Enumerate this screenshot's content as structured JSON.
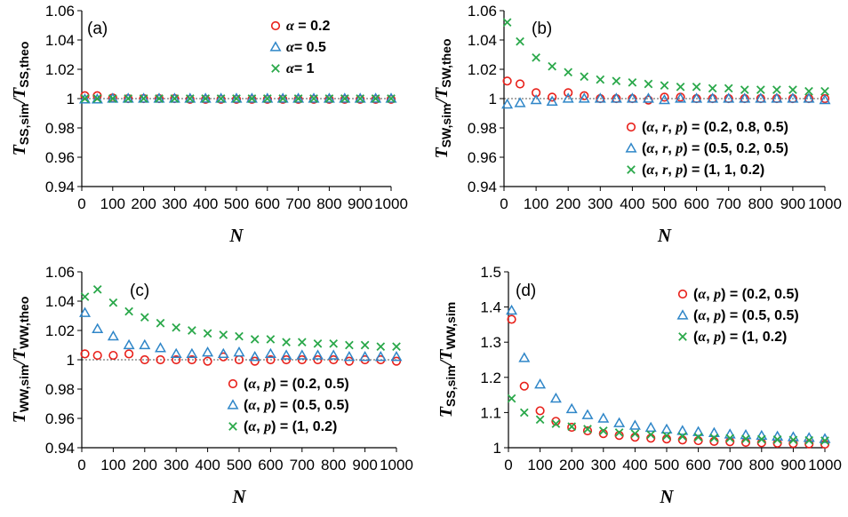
{
  "colors": {
    "red": "#e8201a",
    "blue": "#2f86c8",
    "green": "#2aa84a",
    "axis": "#000000",
    "refline": "#555555"
  },
  "chart_data": [
    {
      "type": "scatter",
      "panel_label": "(a)",
      "xlabel": "N",
      "ylabel": {
        "main": "T",
        "num_sub": "SS,sim",
        "den_sub": "SS,theo"
      },
      "xlim": [
        0,
        1000
      ],
      "ylim": [
        0.94,
        1.06
      ],
      "yticks": [
        "0.94",
        "0.96",
        "0.98",
        "1",
        "1.02",
        "1.04",
        "1.06"
      ],
      "xticks": [
        "0",
        "100",
        "200",
        "300",
        "400",
        "500",
        "600",
        "700",
        "800",
        "900",
        "1000"
      ],
      "legend_position": "top-right",
      "x": [
        10,
        50,
        100,
        150,
        200,
        250,
        300,
        350,
        400,
        450,
        500,
        550,
        600,
        650,
        700,
        750,
        800,
        850,
        900,
        950,
        1000
      ],
      "series": [
        {
          "legend": [
            "α",
            " = 0.2"
          ],
          "marker": "circle",
          "color": "red",
          "values": [
            1.002,
            1.002,
            1.0005,
            1.0,
            1.0,
            1.0,
            1.0,
            0.9995,
            0.9995,
            0.9995,
            0.9995,
            0.9995,
            0.9995,
            0.9995,
            0.9995,
            0.9995,
            0.9995,
            0.9995,
            0.9995,
            0.9995,
            0.9995
          ]
        },
        {
          "legend": [
            "α",
            "= 0.5"
          ],
          "marker": "triangle",
          "color": "blue",
          "values": [
            0.9995,
            0.9995,
            1.0,
            1.0,
            1.0,
            1.0,
            1.0,
            1.0,
            1.0,
            1.0,
            1.0,
            1.0,
            1.0,
            1.0,
            1.0,
            1.0,
            1.0,
            1.0,
            1.0,
            1.0,
            1.0
          ]
        },
        {
          "legend": [
            "α",
            "= 1"
          ],
          "marker": "cross",
          "color": "green",
          "values": [
            1.0,
            1.0,
            1.0,
            1.0,
            1.0,
            1.0,
            1.0,
            1.0,
            1.0,
            1.0,
            1.0,
            1.0,
            1.0,
            1.0,
            1.0,
            1.0,
            1.0,
            1.0,
            1.0,
            1.0,
            1.0
          ]
        }
      ]
    },
    {
      "type": "scatter",
      "panel_label": "(b)",
      "xlabel": "N",
      "ylabel": {
        "main": "T",
        "num_sub": "SW,sim",
        "den_sub": "SW,theo"
      },
      "xlim": [
        0,
        1000
      ],
      "ylim": [
        0.94,
        1.06
      ],
      "yticks": [
        "0.94",
        "0.96",
        "0.98",
        "1",
        "1.02",
        "1.04",
        "1.06"
      ],
      "xticks": [
        "0",
        "100",
        "200",
        "300",
        "400",
        "500",
        "600",
        "700",
        "800",
        "900",
        "1000"
      ],
      "legend_position": "bottom-right",
      "x": [
        10,
        50,
        100,
        150,
        200,
        250,
        300,
        350,
        400,
        450,
        500,
        550,
        600,
        650,
        700,
        750,
        800,
        850,
        900,
        950,
        1000
      ],
      "series": [
        {
          "legend": [
            "(",
            "α",
            ", ",
            "r",
            ", ",
            "p",
            ") = (0.2, 0.8, 0.5)"
          ],
          "marker": "circle",
          "color": "red",
          "values": [
            1.012,
            1.01,
            1.004,
            1.001,
            1.004,
            1.002,
            1.0,
            1.0,
            1.0,
            0.999,
            1.001,
            1.001,
            1.0,
            1.0,
            1.0,
            1.0,
            1.0,
            1.0,
            1.0,
            1.0,
            1.0
          ]
        },
        {
          "legend": [
            "(",
            "α",
            ", ",
            "r",
            ", ",
            "p",
            ") = (0.5, 0.2, 0.5)"
          ],
          "marker": "triangle",
          "color": "blue",
          "values": [
            0.996,
            0.997,
            0.999,
            0.998,
            1.0,
            1.0,
            1.0,
            1.0,
            1.0,
            1.0,
            0.999,
            1.0,
            1.0,
            1.0,
            1.0,
            1.0,
            1.0,
            1.0,
            1.0,
            1.0,
            0.999
          ]
        },
        {
          "legend": [
            "(",
            "α",
            ", ",
            "r",
            ", ",
            "p",
            ") = (1, 1, 0.2)"
          ],
          "marker": "cross",
          "color": "green",
          "values": [
            1.052,
            1.039,
            1.028,
            1.022,
            1.018,
            1.015,
            1.013,
            1.012,
            1.011,
            1.01,
            1.009,
            1.008,
            1.008,
            1.007,
            1.007,
            1.006,
            1.006,
            1.006,
            1.006,
            1.005,
            1.005
          ]
        }
      ]
    },
    {
      "type": "scatter",
      "panel_label": "(c)",
      "xlabel": "N",
      "ylabel": {
        "main": "T",
        "num_sub": "WW,sim",
        "den_sub": "WW,theo"
      },
      "xlim": [
        0,
        1000
      ],
      "ylim": [
        0.94,
        1.06
      ],
      "yticks": [
        "0.94",
        "0.96",
        "0.98",
        "1",
        "1.02",
        "1.04",
        "1.06"
      ],
      "xticks": [
        "0",
        "100",
        "200",
        "300",
        "400",
        "500",
        "600",
        "700",
        "800",
        "900",
        "1000"
      ],
      "legend_position": "bottom-right",
      "x": [
        10,
        50,
        100,
        150,
        200,
        250,
        300,
        350,
        400,
        450,
        500,
        550,
        600,
        650,
        700,
        750,
        800,
        850,
        900,
        950,
        1000
      ],
      "series": [
        {
          "legend": [
            "(",
            "α",
            ", ",
            "p",
            ") = (0.2, 0.5)"
          ],
          "marker": "circle",
          "color": "red",
          "values": [
            1.004,
            1.003,
            1.003,
            1.004,
            1.0,
            1.0,
            1.0,
            1.0,
            0.999,
            1.002,
            1.0,
            0.999,
            1.0,
            1.0,
            1.0,
            1.0,
            1.0,
            0.999,
            1.0,
            1.0,
            0.999
          ]
        },
        {
          "legend": [
            "(",
            "α",
            ", ",
            "p",
            ") = (0.5, 0.5)"
          ],
          "marker": "triangle",
          "color": "blue",
          "values": [
            1.032,
            1.021,
            1.016,
            1.01,
            1.01,
            1.008,
            1.004,
            1.004,
            1.005,
            1.004,
            1.005,
            1.002,
            1.004,
            1.003,
            1.003,
            1.003,
            1.003,
            1.002,
            1.002,
            1.002,
            1.002
          ]
        },
        {
          "legend": [
            "(",
            "α",
            ", ",
            "p",
            ") = (1, 0.2)"
          ],
          "marker": "cross",
          "color": "green",
          "values": [
            1.043,
            1.048,
            1.039,
            1.033,
            1.029,
            1.025,
            1.022,
            1.02,
            1.018,
            1.017,
            1.016,
            1.014,
            1.014,
            1.012,
            1.012,
            1.011,
            1.011,
            1.01,
            1.01,
            1.009,
            1.009
          ]
        }
      ]
    },
    {
      "type": "scatter",
      "panel_label": "(d)",
      "xlabel": "N",
      "ylabel": {
        "main": "T",
        "num_sub": "SS,sim",
        "den_sub": "WW,sim"
      },
      "xlim": [
        0,
        1000
      ],
      "ylim": [
        1,
        1.5
      ],
      "yticks": [
        "1",
        "1.1",
        "1.2",
        "1.3",
        "1.4",
        "1.5"
      ],
      "xticks": [
        "0",
        "100",
        "200",
        "300",
        "400",
        "500",
        "600",
        "700",
        "800",
        "900",
        "1000"
      ],
      "legend_position": "top-right",
      "x": [
        10,
        50,
        100,
        150,
        200,
        250,
        300,
        350,
        400,
        450,
        500,
        550,
        600,
        650,
        700,
        750,
        800,
        850,
        900,
        950,
        1000
      ],
      "series": [
        {
          "legend": [
            "(",
            "α",
            ", ",
            "p",
            ") = (0.2, 0.5)"
          ],
          "marker": "circle",
          "color": "red",
          "values": [
            1.365,
            1.175,
            1.105,
            1.075,
            1.058,
            1.048,
            1.04,
            1.035,
            1.03,
            1.027,
            1.025,
            1.022,
            1.02,
            1.018,
            1.017,
            1.015,
            1.014,
            1.013,
            1.012,
            1.011,
            1.01
          ]
        },
        {
          "legend": [
            "(",
            "α",
            ", ",
            "p",
            ") = (0.5, 0.5)"
          ],
          "marker": "triangle",
          "color": "blue",
          "values": [
            1.39,
            1.255,
            1.18,
            1.14,
            1.11,
            1.093,
            1.083,
            1.07,
            1.063,
            1.057,
            1.052,
            1.048,
            1.045,
            1.042,
            1.038,
            1.036,
            1.034,
            1.032,
            1.03,
            1.028,
            1.025
          ]
        },
        {
          "legend": [
            "(",
            "α",
            ", ",
            "p",
            ") = (1, 0.2)"
          ],
          "marker": "cross",
          "color": "green",
          "values": [
            1.14,
            1.1,
            1.08,
            1.068,
            1.06,
            1.053,
            1.048,
            1.043,
            1.04,
            1.037,
            1.034,
            1.032,
            1.03,
            1.028,
            1.027,
            1.025,
            1.024,
            1.023,
            1.022,
            1.021,
            1.02
          ]
        }
      ]
    }
  ]
}
